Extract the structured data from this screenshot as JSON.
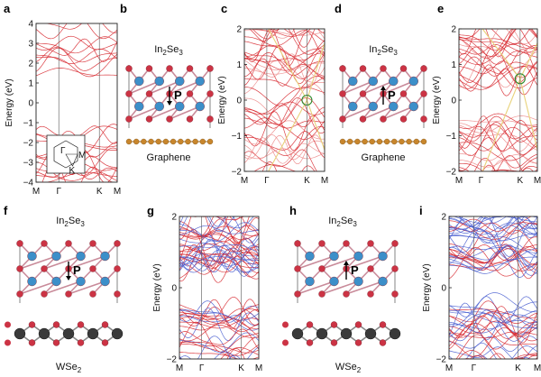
{
  "figure": {
    "panel_labels": [
      "a",
      "b",
      "c",
      "d",
      "e",
      "f",
      "g",
      "h",
      "i"
    ],
    "materials": {
      "in2se3": "In2Se3",
      "graphene": "Graphene",
      "wse2": "WSe2"
    },
    "polarization_label": "P",
    "bz_labels": {
      "gamma": "Γ",
      "m": "M",
      "k": "K"
    },
    "colors": {
      "band_red": "#d7282f",
      "band_red_light": "#ec8a8a",
      "band_yellow": "#e8d27a",
      "band_blue": "#4a5fd0",
      "se_atom": "#cc3344",
      "in_atom": "#3c8fc9",
      "c_atom": "#c8862c",
      "w_atom": "#3a3a3a",
      "circle": "#2e8b2e"
    }
  },
  "chart_data": [
    {
      "panel": "a",
      "type": "line",
      "ylabel": "Energy (eV)",
      "ylim": [
        -4,
        4
      ],
      "yticks": [
        4,
        3,
        2,
        1,
        0,
        -1,
        -2,
        -3,
        -4
      ],
      "xticks": [
        "M",
        "Γ",
        "K",
        "M"
      ]
    },
    {
      "panel": "c",
      "type": "line",
      "ylabel": "Energy (eV)",
      "ylim": [
        -2,
        2
      ],
      "yticks": [
        2,
        1,
        0,
        -1,
        -2
      ],
      "xticks": [
        "M",
        "Γ",
        "K",
        "M"
      ]
    },
    {
      "panel": "e",
      "type": "line",
      "ylabel": "Energy (eV)",
      "ylim": [
        -2,
        2
      ],
      "yticks": [
        2,
        1,
        0,
        -1,
        -2
      ],
      "xticks": [
        "M",
        "Γ",
        "K",
        "M"
      ]
    },
    {
      "panel": "g",
      "type": "line",
      "ylabel": "Energy (eV)",
      "ylim": [
        -2,
        2
      ],
      "yticks": [
        2,
        0,
        -2
      ],
      "xticks": [
        "M",
        "Γ",
        "K",
        "M"
      ]
    },
    {
      "panel": "i",
      "type": "line",
      "ylabel": "Energy (eV)",
      "ylim": [
        -2,
        2
      ],
      "yticks": [
        2,
        0,
        -2
      ],
      "xticks": [
        "M",
        "Γ",
        "K",
        "M"
      ]
    }
  ]
}
